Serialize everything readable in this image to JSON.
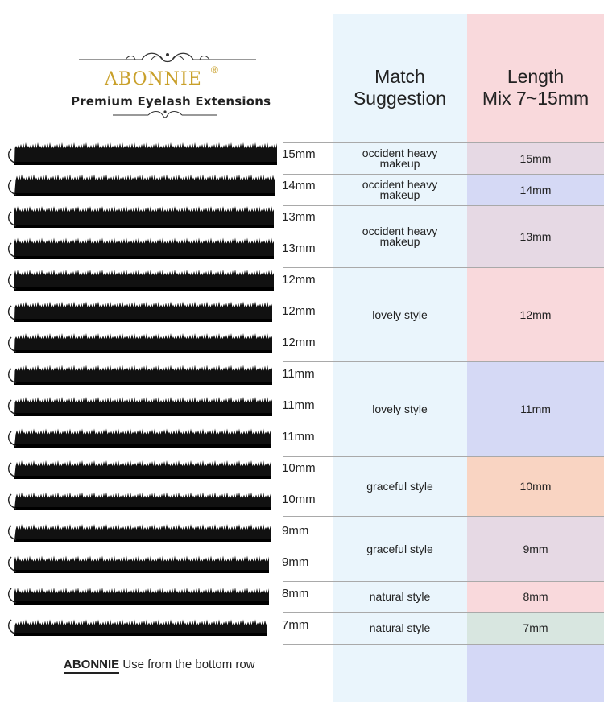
{
  "brand": {
    "name": "ABONNIE",
    "registered": "®",
    "tagline": "Premium Eyelash Extensions"
  },
  "headers": {
    "match": [
      "Match",
      "Suggestion"
    ],
    "length": [
      "Length",
      "Mix 7~15mm"
    ]
  },
  "strip_labels": [
    "15mm",
    "14mm",
    "13mm",
    "13mm",
    "12mm",
    "12mm",
    "12mm",
    "11mm",
    "11mm",
    "11mm",
    "10mm",
    "10mm",
    "9mm",
    "9mm",
    "8mm",
    "7mm"
  ],
  "rows": [
    {
      "match": [
        "occident heavy",
        "makeup"
      ],
      "length": "15mm",
      "color": "#e6d9e4"
    },
    {
      "match": [
        "occident heavy",
        "makeup"
      ],
      "length": "14mm",
      "color": "#d5d9f5"
    },
    {
      "match": [
        "occident heavy",
        "makeup"
      ],
      "length": "13mm",
      "color": "#e6d9e4"
    },
    {
      "match": [
        "lovely style"
      ],
      "length": "12mm",
      "color": "#f9d9dc"
    },
    {
      "match": [
        "lovely style"
      ],
      "length": "11mm",
      "color": "#d5d9f5"
    },
    {
      "match": [
        "graceful style"
      ],
      "length": "10mm",
      "color": "#f9d4c2"
    },
    {
      "match": [
        "graceful style"
      ],
      "length": "9mm",
      "color": "#e6d9e4"
    },
    {
      "match": [
        "natural style"
      ],
      "length": "8mm",
      "color": "#f9d9dc"
    },
    {
      "match": [
        "natural style"
      ],
      "length": "7mm",
      "color": "#d8e6e0"
    }
  ],
  "footer": {
    "brand": "ABONNIE",
    "text": " Use from the bottom row"
  },
  "colors": {
    "gold": "#c9a02a",
    "match_col": "#eaf5fc",
    "length_col": "#f9d9dc",
    "lash": "#111111"
  }
}
